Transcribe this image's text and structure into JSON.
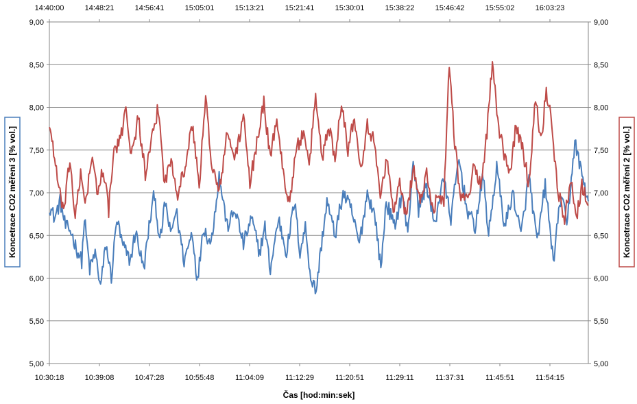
{
  "chart_data": {
    "type": "line",
    "xlabel": "Čas [hod:min:sek]",
    "x_bottom_ticks": [
      "10:30:18",
      "10:39:08",
      "10:47:28",
      "10:55:48",
      "11:04:09",
      "11:12:29",
      "11:20:51",
      "11:29:11",
      "11:37:31",
      "11:45:51",
      "11:54:15"
    ],
    "x_top_ticks": [
      "14:40:00",
      "14:48:21",
      "14:56:41",
      "15:05:01",
      "15:13:21",
      "15:21:41",
      "15:30:01",
      "15:38:22",
      "15:46:42",
      "15:55:02",
      "16:03:23"
    ],
    "ylim": [
      5.0,
      9.0
    ],
    "y_ticks": [
      "5,00",
      "5,50",
      "6,00",
      "6,50",
      "7,00",
      "7,50",
      "8,00",
      "8,50",
      "9,00"
    ],
    "ylabel_left": "Koncetrace CO2 měření 3 [% vol.]",
    "ylabel_right": "Koncetrace CO2 měření 2 [% vol.]",
    "grid": true,
    "series": [
      {
        "axis": "left",
        "color": "#4a7ebb",
        "keypoints": [
          [
            0.0,
            6.85
          ],
          [
            0.01,
            6.7
          ],
          [
            0.02,
            6.9
          ],
          [
            0.03,
            6.6
          ],
          [
            0.04,
            6.55
          ],
          [
            0.05,
            6.35
          ],
          [
            0.06,
            6.2
          ],
          [
            0.065,
            6.7
          ],
          [
            0.075,
            6.1
          ],
          [
            0.085,
            6.3
          ],
          [
            0.095,
            5.9
          ],
          [
            0.105,
            6.4
          ],
          [
            0.115,
            6.0
          ],
          [
            0.125,
            6.7
          ],
          [
            0.135,
            6.4
          ],
          [
            0.15,
            6.2
          ],
          [
            0.16,
            6.55
          ],
          [
            0.175,
            6.1
          ],
          [
            0.185,
            6.6
          ],
          [
            0.195,
            7.0
          ],
          [
            0.205,
            6.4
          ],
          [
            0.215,
            6.9
          ],
          [
            0.225,
            6.5
          ],
          [
            0.235,
            6.8
          ],
          [
            0.25,
            6.2
          ],
          [
            0.265,
            6.55
          ],
          [
            0.275,
            5.95
          ],
          [
            0.285,
            6.6
          ],
          [
            0.3,
            6.4
          ],
          [
            0.315,
            7.2
          ],
          [
            0.33,
            6.6
          ],
          [
            0.345,
            6.8
          ],
          [
            0.36,
            6.4
          ],
          [
            0.375,
            6.7
          ],
          [
            0.39,
            6.3
          ],
          [
            0.4,
            6.6
          ],
          [
            0.41,
            6.1
          ],
          [
            0.425,
            6.7
          ],
          [
            0.44,
            6.3
          ],
          [
            0.455,
            6.9
          ],
          [
            0.465,
            6.3
          ],
          [
            0.475,
            6.6
          ],
          [
            0.485,
            6.0
          ],
          [
            0.495,
            5.85
          ],
          [
            0.505,
            6.4
          ],
          [
            0.515,
            6.9
          ],
          [
            0.53,
            6.5
          ],
          [
            0.545,
            7.0
          ],
          [
            0.56,
            6.8
          ],
          [
            0.575,
            6.4
          ],
          [
            0.59,
            7.0
          ],
          [
            0.605,
            6.7
          ],
          [
            0.615,
            6.1
          ],
          [
            0.625,
            6.9
          ],
          [
            0.64,
            6.6
          ],
          [
            0.655,
            7.0
          ],
          [
            0.665,
            6.5
          ],
          [
            0.675,
            7.4
          ],
          [
            0.685,
            6.8
          ],
          [
            0.7,
            7.1
          ],
          [
            0.715,
            6.6
          ],
          [
            0.73,
            7.2
          ],
          [
            0.745,
            6.7
          ],
          [
            0.76,
            7.4
          ],
          [
            0.775,
            6.8
          ],
          [
            0.79,
            6.6
          ],
          [
            0.805,
            7.2
          ],
          [
            0.815,
            6.5
          ],
          [
            0.83,
            7.3
          ],
          [
            0.845,
            6.6
          ],
          [
            0.86,
            7.0
          ],
          [
            0.875,
            6.5
          ],
          [
            0.89,
            7.2
          ],
          [
            0.905,
            6.4
          ],
          [
            0.92,
            7.1
          ],
          [
            0.935,
            6.2
          ],
          [
            0.95,
            7.0
          ],
          [
            0.96,
            6.6
          ],
          [
            0.975,
            7.6
          ],
          [
            0.985,
            7.3
          ],
          [
            1.0,
            6.9
          ]
        ]
      },
      {
        "axis": "right",
        "color": "#be4b48",
        "keypoints": [
          [
            0.0,
            7.8
          ],
          [
            0.008,
            7.5
          ],
          [
            0.018,
            7.0
          ],
          [
            0.028,
            6.8
          ],
          [
            0.038,
            7.4
          ],
          [
            0.048,
            6.7
          ],
          [
            0.058,
            7.2
          ],
          [
            0.068,
            6.9
          ],
          [
            0.078,
            7.4
          ],
          [
            0.09,
            7.0
          ],
          [
            0.1,
            7.3
          ],
          [
            0.11,
            6.8
          ],
          [
            0.12,
            7.5
          ],
          [
            0.132,
            7.6
          ],
          [
            0.142,
            8.05
          ],
          [
            0.152,
            7.4
          ],
          [
            0.165,
            7.9
          ],
          [
            0.178,
            7.2
          ],
          [
            0.19,
            7.6
          ],
          [
            0.202,
            8.0
          ],
          [
            0.214,
            7.1
          ],
          [
            0.226,
            7.4
          ],
          [
            0.238,
            7.0
          ],
          [
            0.252,
            7.3
          ],
          [
            0.265,
            7.8
          ],
          [
            0.278,
            7.1
          ],
          [
            0.29,
            8.1
          ],
          [
            0.302,
            7.3
          ],
          [
            0.315,
            7.0
          ],
          [
            0.33,
            7.7
          ],
          [
            0.345,
            7.4
          ],
          [
            0.36,
            7.9
          ],
          [
            0.372,
            7.1
          ],
          [
            0.385,
            7.6
          ],
          [
            0.398,
            8.05
          ],
          [
            0.41,
            7.4
          ],
          [
            0.422,
            7.9
          ],
          [
            0.434,
            7.2
          ],
          [
            0.446,
            6.9
          ],
          [
            0.458,
            7.5
          ],
          [
            0.47,
            7.7
          ],
          [
            0.482,
            7.3
          ],
          [
            0.494,
            8.15
          ],
          [
            0.506,
            7.4
          ],
          [
            0.518,
            7.8
          ],
          [
            0.53,
            7.4
          ],
          [
            0.542,
            8.1
          ],
          [
            0.554,
            7.5
          ],
          [
            0.566,
            7.9
          ],
          [
            0.578,
            7.3
          ],
          [
            0.59,
            7.8
          ],
          [
            0.602,
            7.6
          ],
          [
            0.614,
            7.0
          ],
          [
            0.626,
            7.4
          ],
          [
            0.638,
            6.8
          ],
          [
            0.65,
            7.1
          ],
          [
            0.662,
            6.7
          ],
          [
            0.675,
            7.3
          ],
          [
            0.688,
            6.9
          ],
          [
            0.7,
            7.2
          ],
          [
            0.712,
            6.8
          ],
          [
            0.722,
            7.0
          ],
          [
            0.732,
            6.9
          ],
          [
            0.742,
            8.55
          ],
          [
            0.752,
            7.6
          ],
          [
            0.762,
            7.0
          ],
          [
            0.775,
            6.9
          ],
          [
            0.788,
            7.3
          ],
          [
            0.8,
            7.1
          ],
          [
            0.812,
            7.7
          ],
          [
            0.822,
            8.55
          ],
          [
            0.832,
            7.8
          ],
          [
            0.842,
            7.5
          ],
          [
            0.854,
            7.2
          ],
          [
            0.866,
            7.8
          ],
          [
            0.878,
            7.5
          ],
          [
            0.89,
            7.1
          ],
          [
            0.902,
            8.15
          ],
          [
            0.912,
            7.6
          ],
          [
            0.922,
            8.2
          ],
          [
            0.932,
            7.8
          ],
          [
            0.944,
            7.0
          ],
          [
            0.956,
            6.7
          ],
          [
            0.968,
            7.2
          ],
          [
            0.978,
            6.7
          ],
          [
            0.988,
            7.1
          ],
          [
            1.0,
            6.85
          ]
        ]
      }
    ]
  }
}
